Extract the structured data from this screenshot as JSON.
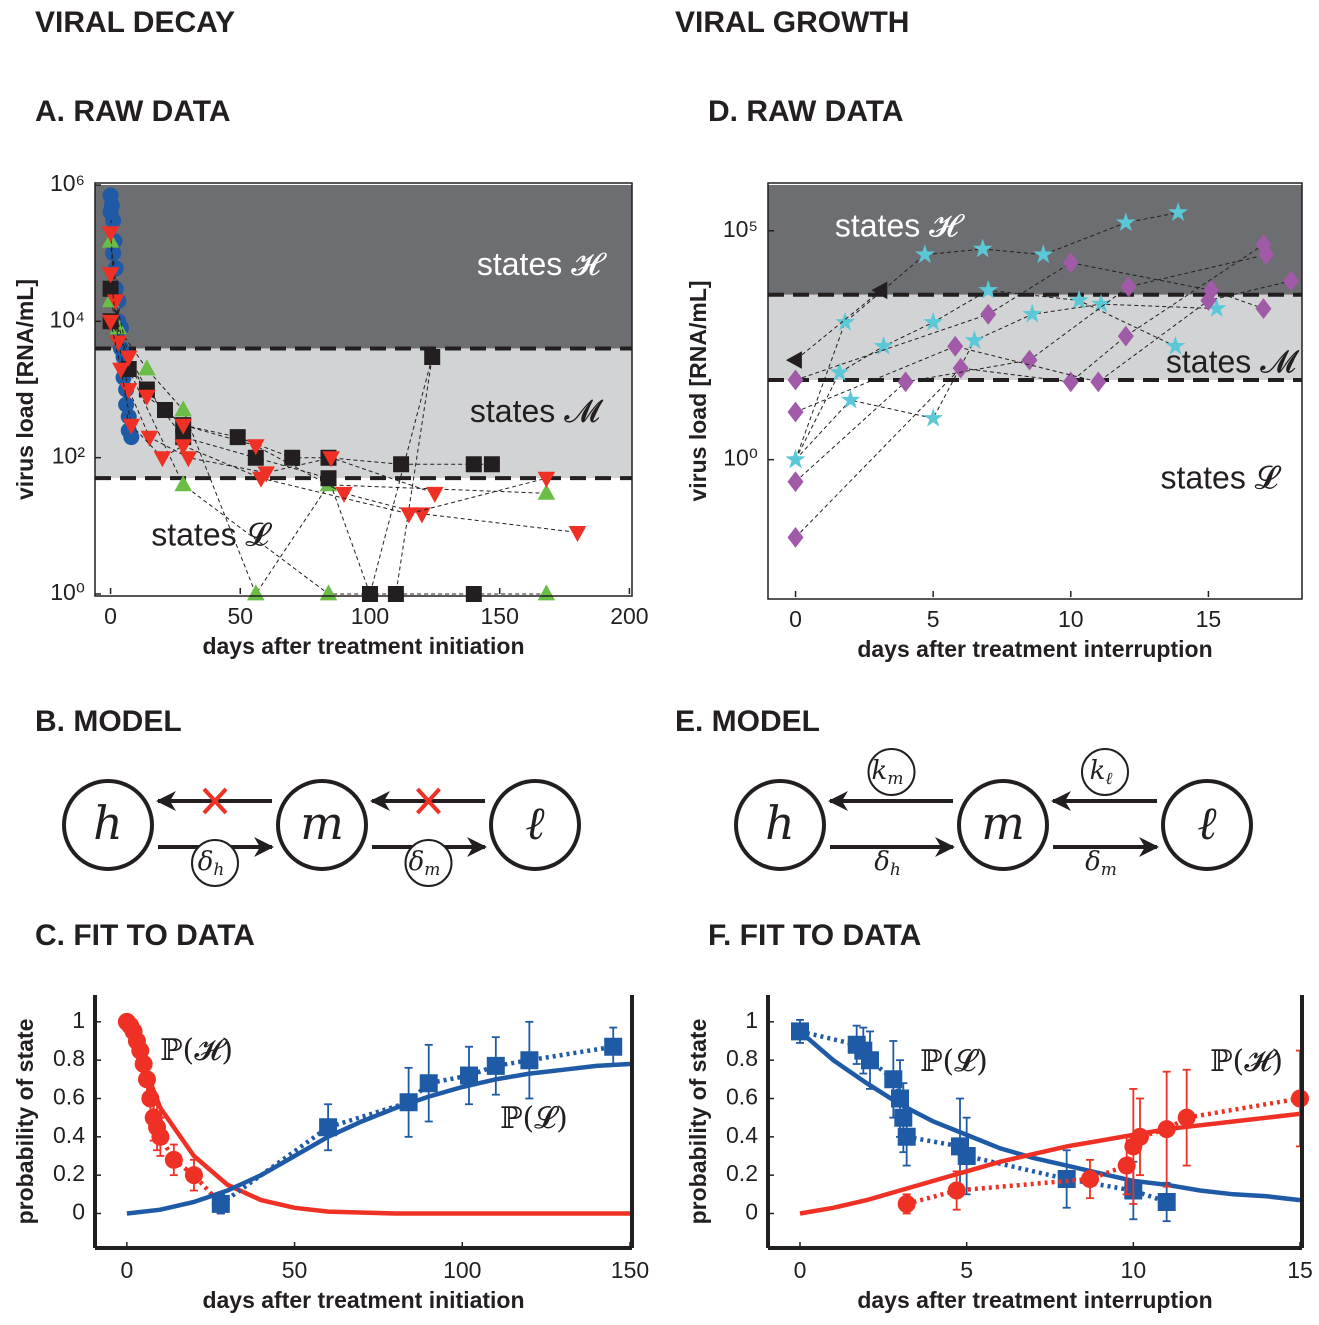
{
  "headers": [
    "VIRAL DECAY",
    "VIRAL GROWTH"
  ],
  "chart_data": [
    {
      "type": "line",
      "title": "A. RAW DATA",
      "x_label": "days after treatment initiation",
      "y_label": "virus load [RNA/mL]",
      "log_y": true,
      "xlim": [
        -6,
        201
      ],
      "ylim": [
        1,
        1000000
      ],
      "xticks": [
        0,
        50,
        100,
        150,
        200
      ],
      "yticks": [
        {
          "value": 1,
          "label": "10⁰"
        },
        {
          "value": 100,
          "label": "10²"
        },
        {
          "value": 10000,
          "label": "10⁴"
        },
        {
          "value": 1000000,
          "label": "10⁶"
        }
      ],
      "regions": [
        {
          "label": "states 𝓗",
          "from": 4000,
          "to": 1000000,
          "color": "#6d6e71"
        },
        {
          "label": "states 𝓜",
          "from": 50,
          "to": 4000,
          "color": "#d1d3d4"
        },
        {
          "label": "states 𝓛",
          "from": 1,
          "to": 50,
          "color": "#ffffff"
        }
      ],
      "series": [
        {
          "marker": "circle",
          "color": "#1f5aa6",
          "x": [
            0,
            0.5,
            1,
            1.5,
            2,
            3,
            4,
            5,
            6,
            7,
            8
          ],
          "values": [
            700000,
            500000,
            300000,
            150000,
            60000,
            20000,
            8000,
            3000,
            1000,
            400,
            200
          ]
        },
        {
          "marker": "circle",
          "color": "#1f5aa6",
          "x": [
            0,
            1,
            2,
            3,
            4,
            5,
            6,
            7
          ],
          "values": [
            400000,
            100000,
            30000,
            10000,
            4000,
            1500,
            600,
            250
          ]
        },
        {
          "marker": "triangle-up",
          "color": "#6abd45",
          "x": [
            0,
            3,
            14,
            28,
            56,
            84,
            168
          ],
          "values": [
            150000,
            8000,
            2000,
            500,
            1,
            40,
            30
          ]
        },
        {
          "marker": "triangle-up",
          "color": "#6abd45",
          "x": [
            0,
            7,
            28,
            84,
            168
          ],
          "values": [
            20000,
            2000,
            40,
            1,
            1
          ]
        },
        {
          "marker": "square",
          "color": "#231f20",
          "x": [
            0,
            7,
            21,
            28,
            49,
            70,
            84,
            112,
            140,
            147
          ],
          "values": [
            30000,
            2000,
            500,
            300,
            200,
            100,
            100,
            80,
            80,
            80
          ]
        },
        {
          "marker": "square",
          "color": "#231f20",
          "x": [
            0,
            14,
            28,
            56,
            84,
            100,
            124,
            110,
            140
          ],
          "values": [
            10000,
            1000,
            200,
            100,
            50,
            1,
            3000,
            1,
            1
          ]
        },
        {
          "marker": "triangle-down",
          "color": "#ee3124",
          "x": [
            0,
            2,
            7,
            14,
            28,
            56,
            90,
            120,
            180
          ],
          "values": [
            200000,
            20000,
            3000,
            800,
            300,
            150,
            30,
            15,
            8
          ]
        },
        {
          "marker": "triangle-down",
          "color": "#ee3124",
          "x": [
            0,
            3,
            7,
            15,
            30,
            60,
            85,
            125
          ],
          "values": [
            50000,
            5000,
            1000,
            200,
            100,
            60,
            100,
            30
          ]
        },
        {
          "marker": "triangle-down",
          "color": "#ee3124",
          "x": [
            0,
            4,
            8,
            20,
            28,
            58,
            115,
            168
          ],
          "values": [
            10000,
            2000,
            300,
            100,
            150,
            50,
            15,
            50
          ]
        }
      ]
    },
    {
      "type": "line",
      "title": "D. RAW DATA",
      "x_label": "days after treatment interruption",
      "y_label": "virus load [RNA/mL]",
      "log_y": true,
      "xlim": [
        -1,
        18.4
      ],
      "ylim": [
        0.001,
        1000000
      ],
      "xticks": [
        0,
        5,
        10,
        15
      ],
      "yticks": [
        {
          "value": 1,
          "label": "10⁰"
        },
        {
          "value": 100000,
          "label": "10⁵"
        }
      ],
      "regions": [
        {
          "label": "states 𝓗",
          "from": 4000,
          "to": 1000000,
          "color": "#6d6e71"
        },
        {
          "label": "states 𝓜",
          "from": 55,
          "to": 4000,
          "color": "#d1d3d4"
        },
        {
          "label": "states 𝓛",
          "from": 0.001,
          "to": 55,
          "color": "#ffffff"
        }
      ],
      "series": [
        {
          "marker": "star",
          "color": "#5bc8d8",
          "x": [
            0,
            1.8,
            4.7,
            6.8,
            9,
            12,
            13.9
          ],
          "values": [
            1,
            1000,
            30000,
            40000,
            30000,
            150000,
            250000
          ]
        },
        {
          "marker": "star",
          "color": "#5bc8d8",
          "x": [
            0,
            1.6,
            3.2,
            5,
            7,
            10.3,
            13.8
          ],
          "values": [
            1,
            80,
            300,
            1000,
            5000,
            3000,
            300
          ]
        },
        {
          "marker": "star",
          "color": "#5bc8d8",
          "x": [
            0,
            2,
            5,
            6.5,
            8.6,
            11.1,
            15.3
          ],
          "values": [
            1,
            20,
            8,
            400,
            1500,
            2500,
            2000
          ]
        },
        {
          "marker": "diamond",
          "color": "#a05aa8",
          "x": [
            0,
            6,
            10,
            12,
            17
          ],
          "values": [
            0.02,
            100,
            50,
            500,
            50000
          ]
        },
        {
          "marker": "diamond",
          "color": "#a05aa8",
          "x": [
            0,
            4,
            8.5,
            12.1,
            17.1
          ],
          "values": [
            0.33,
            50,
            150,
            6000,
            30000
          ]
        },
        {
          "marker": "diamond",
          "color": "#a05aa8",
          "x": [
            0,
            5.8,
            11,
            15,
            18
          ],
          "values": [
            11,
            300,
            50,
            3000,
            8000
          ]
        },
        {
          "marker": "diamond",
          "color": "#a05aa8",
          "x": [
            0,
            7,
            10,
            15.1,
            17
          ],
          "values": [
            55,
            1500,
            20000,
            5000,
            2000
          ]
        },
        {
          "marker": "triangle-left",
          "color": "#231f20",
          "x": [
            3.1,
            0
          ],
          "values": [
            5000,
            150
          ]
        }
      ]
    },
    {
      "type": "line",
      "title": "C. FIT TO DATA",
      "x_label": "days after treatment initiation",
      "y_label": "probability of state",
      "xlim": [
        -9.5,
        150.6
      ],
      "ylim": [
        -0.18,
        1.14
      ],
      "xticks": [
        0,
        50,
        100,
        150
      ],
      "yticks": [
        0,
        0.2,
        0.4,
        0.6,
        0.8,
        1
      ],
      "series": [
        {
          "name": "ℙ(𝓗)",
          "marker": "circle",
          "color": "#ee3124",
          "x": [
            0,
            1,
            2,
            3,
            4,
            5,
            6,
            7,
            8,
            9,
            10,
            14,
            20,
            28
          ],
          "values": [
            1,
            0.98,
            0.95,
            0.9,
            0.85,
            0.78,
            0.7,
            0.6,
            0.5,
            0.45,
            0.4,
            0.28,
            0.2,
            0.05
          ],
          "errors": [
            0.01,
            0.02,
            0.03,
            0.04,
            0.05,
            0.06,
            0.08,
            0.1,
            0.12,
            0.12,
            0.1,
            0.08,
            0.08,
            0.05
          ],
          "fit": {
            "x": [
              0,
              10,
              20,
              30,
              40,
              50,
              60,
              80,
              100,
              150
            ],
            "values": [
              1,
              0.55,
              0.3,
              0.15,
              0.07,
              0.03,
              0.01,
              0,
              0,
              0
            ]
          }
        },
        {
          "name": "ℙ(𝓛)",
          "marker": "square",
          "color": "#1f5aa6",
          "x": [
            28,
            60,
            84,
            90,
            102,
            110,
            120,
            145
          ],
          "values": [
            0.05,
            0.45,
            0.58,
            0.68,
            0.72,
            0.77,
            0.8,
            0.87
          ],
          "errors": [
            0.05,
            0.12,
            0.18,
            0.2,
            0.15,
            0.15,
            0.2,
            0.1
          ],
          "fit": {
            "x": [
              0,
              10,
              20,
              30,
              40,
              50,
              60,
              70,
              80,
              90,
              100,
              110,
              120,
              130,
              140,
              150
            ],
            "values": [
              0,
              0.02,
              0.06,
              0.12,
              0.2,
              0.3,
              0.4,
              0.48,
              0.55,
              0.61,
              0.66,
              0.7,
              0.73,
              0.75,
              0.77,
              0.78
            ]
          }
        }
      ]
    },
    {
      "type": "line",
      "title": "F. FIT TO DATA",
      "x_label": "days after treatment interruption",
      "y_label": "probability of state",
      "xlim": [
        -0.96,
        15.06
      ],
      "ylim": [
        -0.18,
        1.14
      ],
      "xticks": [
        0,
        5,
        10,
        15
      ],
      "yticks": [
        0,
        0.2,
        0.4,
        0.6,
        0.8,
        1
      ],
      "series": [
        {
          "name": "ℙ(𝓛)",
          "marker": "square",
          "color": "#1f5aa6",
          "x": [
            0,
            1.7,
            1.9,
            2.1,
            2.8,
            3,
            3.1,
            3.2,
            4.8,
            5,
            8,
            10,
            11
          ],
          "values": [
            0.95,
            0.88,
            0.85,
            0.8,
            0.7,
            0.6,
            0.5,
            0.4,
            0.35,
            0.3,
            0.18,
            0.12,
            0.06
          ],
          "errors": [
            0.06,
            0.1,
            0.12,
            0.15,
            0.2,
            0.2,
            0.18,
            0.15,
            0.25,
            0.2,
            0.15,
            0.15,
            0.1
          ],
          "fit": {
            "x": [
              0,
              1,
              2,
              3,
              4,
              5,
              6,
              7,
              8,
              9,
              10,
              11,
              12,
              13,
              14,
              15
            ],
            "values": [
              0.95,
              0.8,
              0.68,
              0.57,
              0.48,
              0.41,
              0.34,
              0.29,
              0.25,
              0.21,
              0.17,
              0.15,
              0.12,
              0.1,
              0.09,
              0.07
            ]
          }
        },
        {
          "name": "ℙ(𝓗)",
          "marker": "circle",
          "color": "#ee3124",
          "x": [
            3.2,
            4.7,
            8.7,
            9.8,
            10,
            10.2,
            11,
            11.6,
            15
          ],
          "values": [
            0.05,
            0.12,
            0.18,
            0.25,
            0.35,
            0.4,
            0.44,
            0.5,
            0.6
          ],
          "errors": [
            0.05,
            0.1,
            0.1,
            0.15,
            0.3,
            0.2,
            0.3,
            0.25,
            0.25
          ],
          "fit": {
            "x": [
              0,
              1,
              2,
              3,
              4,
              5,
              6,
              7,
              8,
              9,
              10,
              11,
              12,
              13,
              14,
              15
            ],
            "values": [
              0,
              0.03,
              0.07,
              0.12,
              0.17,
              0.22,
              0.27,
              0.31,
              0.35,
              0.38,
              0.41,
              0.44,
              0.46,
              0.48,
              0.5,
              0.52
            ]
          }
        }
      ]
    }
  ],
  "models": [
    {
      "title": "B. MODEL",
      "nodes": [
        "h",
        "m",
        "ℓ"
      ],
      "forward_rates": [
        {
          "symbol": "δ",
          "sub": "h"
        },
        {
          "symbol": "δ",
          "sub": "m"
        }
      ],
      "backward_blocked": true
    },
    {
      "title": "E. MODEL",
      "nodes": [
        "h",
        "m",
        "ℓ"
      ],
      "forward_rates": [
        {
          "symbol": "δ",
          "sub": "h"
        },
        {
          "symbol": "δ",
          "sub": "m"
        }
      ],
      "backward_rates": [
        {
          "symbol": "k",
          "sub": "m"
        },
        {
          "symbol": "k",
          "sub": "ℓ"
        }
      ]
    }
  ]
}
